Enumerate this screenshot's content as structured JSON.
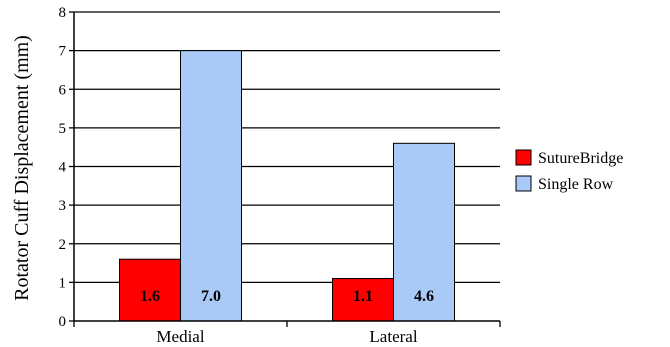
{
  "chart_data": {
    "type": "bar",
    "categories": [
      "Medial",
      "Lateral"
    ],
    "series": [
      {
        "name": "SutureBridge",
        "values": [
          1.6,
          1.1
        ],
        "labels": [
          "1.6",
          "1.1"
        ],
        "color": "#ff0000"
      },
      {
        "name": "Single Row",
        "values": [
          7.0,
          4.6
        ],
        "labels": [
          "7.0",
          "4.6"
        ],
        "color": "#a9c9f7"
      }
    ],
    "ylabel": "Rotator Cuff  Displacement (mm)",
    "ylim": [
      0,
      8
    ],
    "yticks": [
      "0",
      "1",
      "2",
      "3",
      "4",
      "5",
      "6",
      "7",
      "8"
    ],
    "grid": true,
    "legend": "right"
  }
}
